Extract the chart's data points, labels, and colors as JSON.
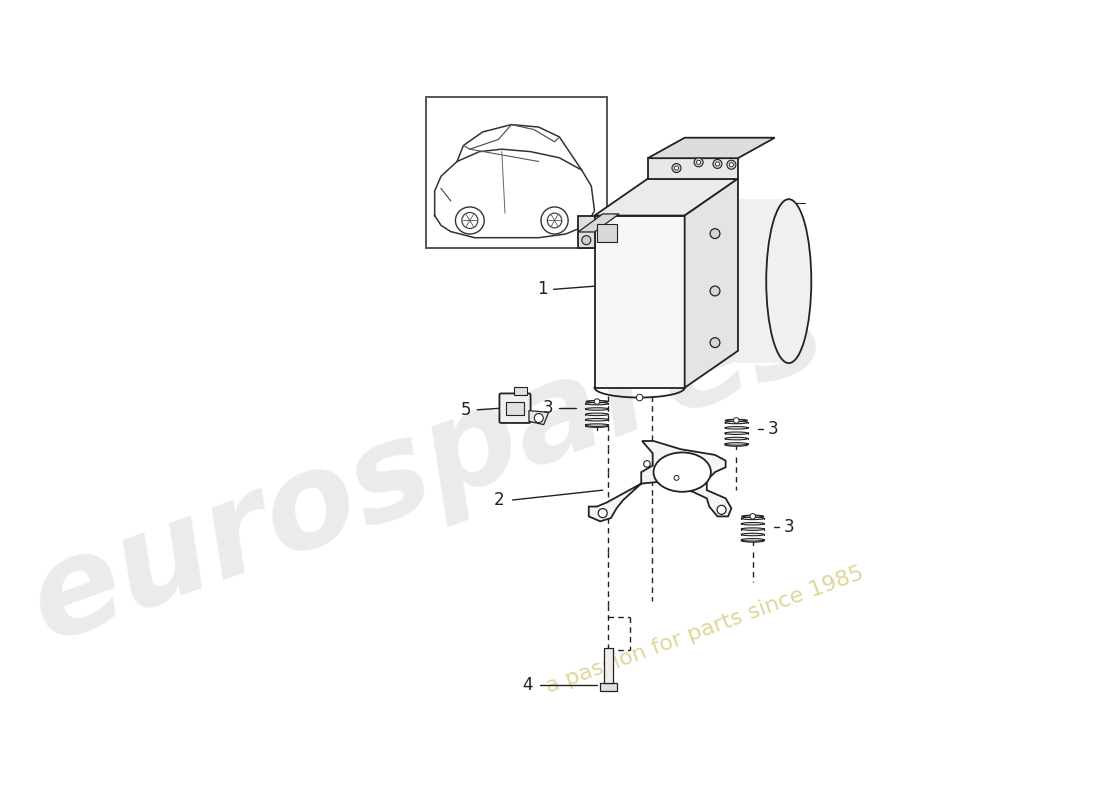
{
  "bg_color": "#ffffff",
  "line_color": "#222222",
  "wm1_color": "#cccccc",
  "wm2_color": "#d4c87a",
  "fig_w": 11.0,
  "fig_h": 8.0,
  "dpi": 100
}
